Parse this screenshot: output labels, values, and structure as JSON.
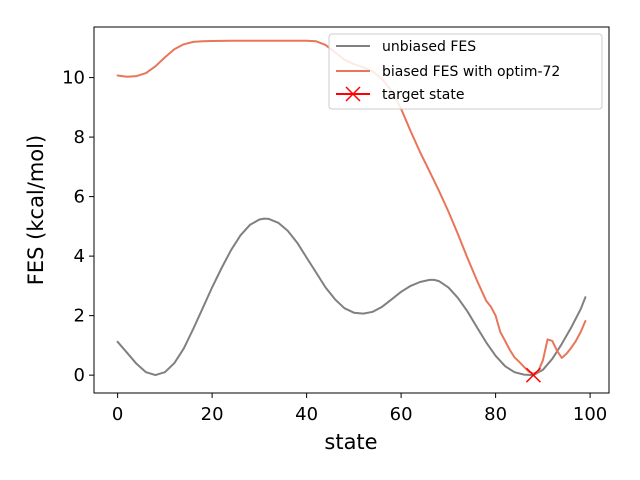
{
  "chart_data": {
    "type": "line",
    "title": "",
    "xlabel": "state",
    "ylabel": "FES (kcal/mol)",
    "xlim": [
      -5,
      104
    ],
    "ylim": [
      -0.6,
      11.7
    ],
    "xticks": [
      0,
      20,
      40,
      60,
      80,
      100
    ],
    "yticks": [
      0,
      2,
      4,
      6,
      8,
      10
    ],
    "grid": false,
    "legend_position": "upper-right",
    "series": [
      {
        "name": "unbiased FES",
        "color": "#808080",
        "x": [
          0,
          2,
          4,
          6,
          8,
          10,
          12,
          14,
          16,
          18,
          20,
          22,
          24,
          26,
          28,
          30,
          31,
          32,
          34,
          36,
          38,
          40,
          42,
          44,
          46,
          48,
          50,
          52,
          54,
          56,
          58,
          60,
          62,
          64,
          66,
          67,
          68,
          70,
          72,
          74,
          76,
          78,
          80,
          82,
          84,
          86,
          88,
          90,
          92,
          94,
          96,
          98,
          99
        ],
        "y": [
          1.12,
          0.75,
          0.38,
          0.1,
          0.0,
          0.1,
          0.4,
          0.9,
          1.55,
          2.25,
          2.95,
          3.6,
          4.2,
          4.7,
          5.05,
          5.23,
          5.26,
          5.25,
          5.12,
          4.85,
          4.45,
          3.95,
          3.45,
          2.95,
          2.55,
          2.25,
          2.1,
          2.07,
          2.13,
          2.3,
          2.55,
          2.8,
          3.0,
          3.13,
          3.2,
          3.2,
          3.16,
          2.95,
          2.6,
          2.15,
          1.62,
          1.1,
          0.65,
          0.3,
          0.1,
          0.02,
          0.0,
          0.18,
          0.55,
          1.05,
          1.6,
          2.22,
          2.62
        ]
      },
      {
        "name": "biased FES with optim-72",
        "color": "#e8765a",
        "x": [
          0,
          2,
          4,
          6,
          8,
          10,
          12,
          14,
          16,
          18,
          20,
          24,
          30,
          36,
          40,
          42,
          44,
          46,
          48,
          50,
          52,
          54,
          56,
          58,
          60,
          62,
          64,
          66,
          68,
          70,
          72,
          74,
          76,
          78,
          79,
          80,
          81,
          82,
          83,
          84,
          85,
          86,
          87,
          88,
          89,
          90,
          91,
          92,
          93,
          94,
          95,
          96,
          97,
          98,
          99
        ],
        "y": [
          10.07,
          10.03,
          10.05,
          10.15,
          10.38,
          10.68,
          10.95,
          11.12,
          11.2,
          11.22,
          11.23,
          11.24,
          11.24,
          11.24,
          11.24,
          11.22,
          11.1,
          10.85,
          10.6,
          10.45,
          10.35,
          10.2,
          9.95,
          9.55,
          8.95,
          8.2,
          7.5,
          6.85,
          6.2,
          5.5,
          4.75,
          3.95,
          3.2,
          2.5,
          2.3,
          2.0,
          1.45,
          1.15,
          0.85,
          0.6,
          0.45,
          0.28,
          0.12,
          0.05,
          0.12,
          0.5,
          1.2,
          1.15,
          0.82,
          0.58,
          0.72,
          0.92,
          1.15,
          1.45,
          1.82
        ]
      },
      {
        "name": "target state",
        "color": "#ff0000",
        "marker": "x",
        "x": [
          88
        ],
        "y": [
          0.0
        ]
      }
    ]
  }
}
